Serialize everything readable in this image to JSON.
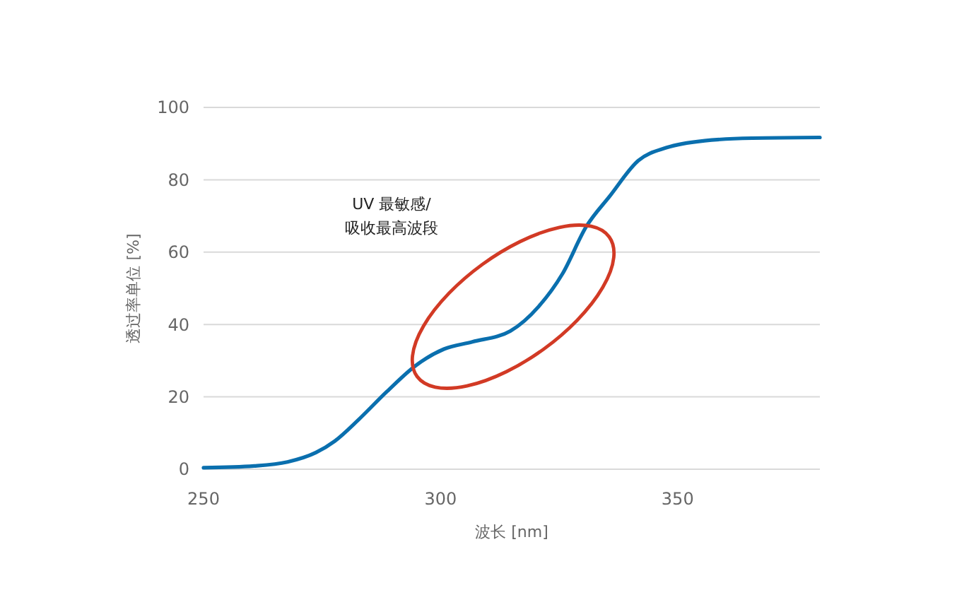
{
  "chart_data": {
    "type": "line",
    "xlabel": "波长 [nm]",
    "ylabel": "透过率单位 [%]",
    "xlim": [
      250,
      380
    ],
    "xticks": [
      250,
      300,
      350
    ],
    "ylim": [
      0,
      100
    ],
    "yticks": [
      0,
      20,
      40,
      60,
      80,
      100
    ],
    "grid": "y",
    "marker": "none",
    "line_style": "solid",
    "annotations": [
      "UV 最敏感/\n吸收最高波段"
    ],
    "series": [
      {
        "color": "#0a6fae",
        "x": [
          250,
          260.7,
          267.7,
          273.7,
          277.7,
          282.7,
          288.7,
          294.7,
          300.7,
          306.7,
          314.7,
          320.7,
          325.7,
          330.7,
          335.7,
          341.7,
          347.7,
          355.7,
          365.7,
          380
        ],
        "values": [
          0.4,
          0.9,
          2,
          4.6,
          7.8,
          13.7,
          21.5,
          28.6,
          33.2,
          35.2,
          38.2,
          45,
          54,
          67,
          75.5,
          85.3,
          88.9,
          90.8,
          91.5,
          91.7
        ]
      }
    ]
  }
}
